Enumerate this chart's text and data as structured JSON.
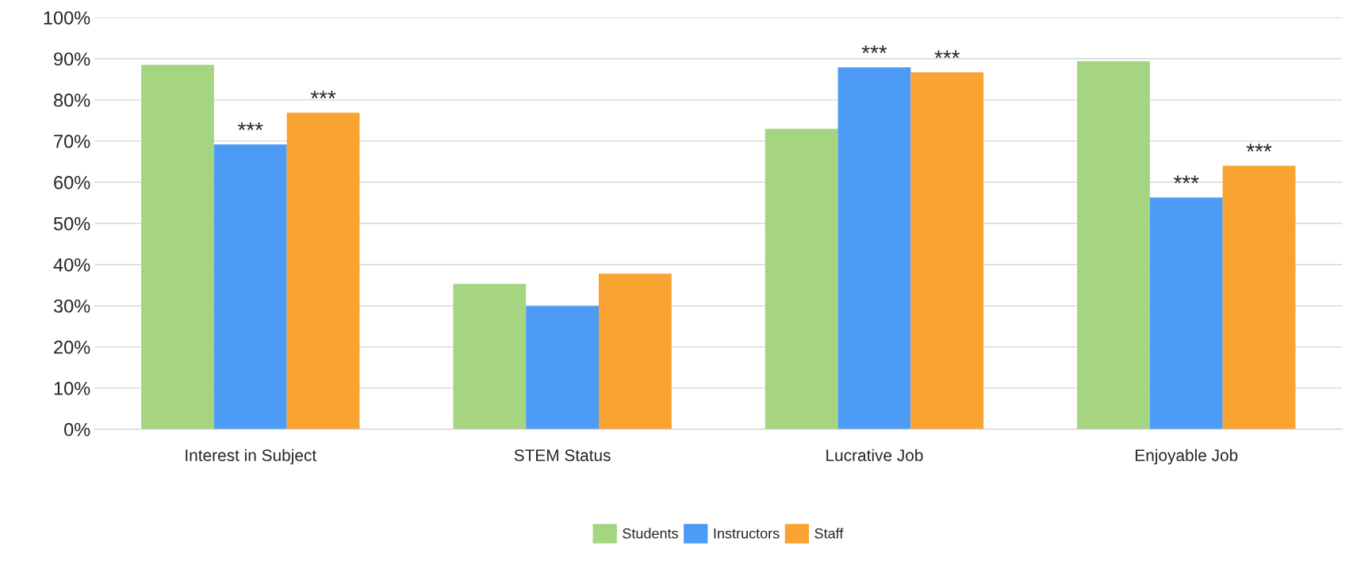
{
  "chart_data": {
    "type": "bar",
    "categories": [
      "Interest in Subject",
      "STEM Status",
      "Lucrative Job",
      "Enjoyable Job"
    ],
    "series": [
      {
        "name": "Students",
        "color": "#a5d581",
        "values": [
          88.5,
          35.3,
          73,
          89.4
        ]
      },
      {
        "name": "Instructors",
        "color": "#4c9bf5",
        "values": [
          69.2,
          29.9,
          87.9,
          56.3
        ],
        "value_labels": [
          "***",
          null,
          "***",
          "***"
        ]
      },
      {
        "name": "Staff",
        "color": "#f9a332",
        "values": [
          76.9,
          37.8,
          86.7,
          64
        ],
        "value_labels": [
          "***",
          null,
          "***",
          "***"
        ]
      }
    ],
    "ylim": [
      0,
      100
    ],
    "yticks": [
      {
        "value": 0,
        "label": "0%"
      },
      {
        "value": 10,
        "label": "10%"
      },
      {
        "value": 20,
        "label": "20%"
      },
      {
        "value": 30,
        "label": "30%"
      },
      {
        "value": 40,
        "label": "40%"
      },
      {
        "value": 50,
        "label": "50%"
      },
      {
        "value": 60,
        "label": "60%"
      },
      {
        "value": 70,
        "label": "70%"
      },
      {
        "value": 80,
        "label": "80%"
      },
      {
        "value": 90,
        "label": "90%"
      },
      {
        "value": 100,
        "label": "100%"
      }
    ],
    "grid": "y",
    "legend": "bottom"
  }
}
